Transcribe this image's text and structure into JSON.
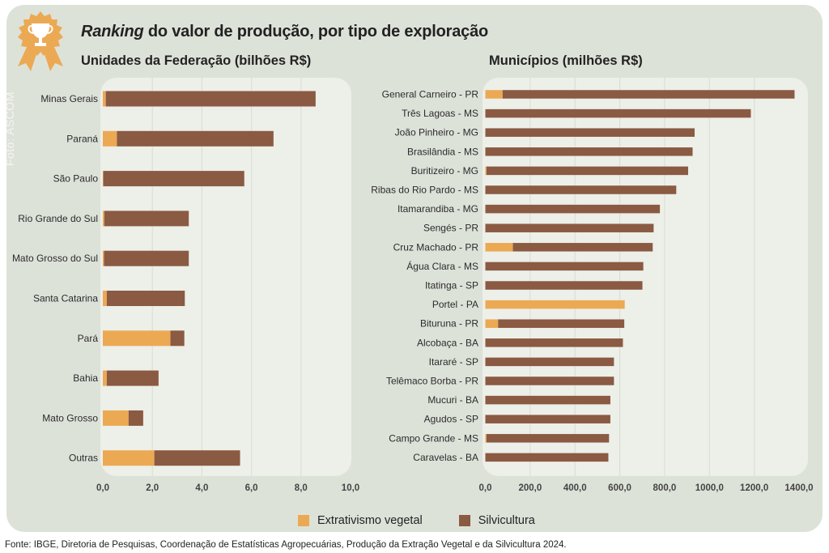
{
  "header": {
    "title_italic": "Ranking",
    "title_rest": " do valor de produção, por tipo de exploração",
    "photo_credit": "Foto: ASCOM",
    "icon": "trophy-medal-icon"
  },
  "colors": {
    "extrativismo": "#eca953",
    "silvicultura": "#8a5a42",
    "panel": "#edefe9",
    "frame": "#dde2d9",
    "grid": "#dcdfd8"
  },
  "legend": {
    "items": [
      {
        "label": "Extrativismo vegetal",
        "color": "#eca953"
      },
      {
        "label": "Silvicultura",
        "color": "#8a5a42"
      }
    ]
  },
  "footer": {
    "source": "Fonte: IBGE, Diretoria de Pesquisas, Coordenação de Estatísticas Agropecuárias, Produção da Extração Vegetal e da Silvicultura 2024."
  },
  "chart_data": [
    {
      "type": "bar",
      "orientation": "horizontal",
      "stacked": true,
      "title": "Unidades da Federação (bilhões R$)",
      "xlabel": "",
      "ylabel": "",
      "xlim": [
        0,
        10
      ],
      "xticks": [
        "0,0",
        "2,0",
        "4,0",
        "6,0",
        "8,0",
        "10,0"
      ],
      "xtick_values": [
        0,
        2,
        4,
        6,
        8,
        10
      ],
      "grid": true,
      "categories": [
        "Minas Gerais",
        "Paraná",
        "São Paulo",
        "Rio Grande do Sul",
        "Mato Grosso do Sul",
        "Santa Catarina",
        "Pará",
        "Bahia",
        "Mato Grosso",
        "Outras"
      ],
      "series": [
        {
          "name": "Extrativismo vegetal",
          "values": [
            0.12,
            0.57,
            0.02,
            0.06,
            0.05,
            0.16,
            2.73,
            0.16,
            1.04,
            2.08
          ]
        },
        {
          "name": "Silvicultura",
          "values": [
            8.47,
            6.32,
            5.69,
            3.41,
            3.42,
            3.15,
            0.56,
            2.09,
            0.59,
            3.46
          ]
        }
      ],
      "legend": "bottom"
    },
    {
      "type": "bar",
      "orientation": "horizontal",
      "stacked": true,
      "title": "Municípios (milhões R$)",
      "xlabel": "",
      "ylabel": "",
      "xlim": [
        0,
        1400
      ],
      "xticks": [
        "0,0",
        "200,0",
        "400,0",
        "600,0",
        "800,0",
        "1000,0",
        "1200,0",
        "1400,0"
      ],
      "xtick_values": [
        0,
        200,
        400,
        600,
        800,
        1000,
        1200,
        1400
      ],
      "grid": true,
      "categories": [
        "General Carneiro - PR",
        "Três Lagoas - MS",
        "João Pinheiro - MG",
        "Brasilândia - MS",
        "Buritizeiro - MG",
        "Ribas do Rio Pardo - MS",
        "Itamarandiba - MG",
        "Sengés - PR",
        "Cruz Machado - PR",
        "Água Clara - MS",
        "Itatinga - SP",
        "Portel - PA",
        "Bituruna - PR",
        "Alcobaça - BA",
        "Itararé - SP",
        "Telêmaco Borba - PR",
        "Mucuri - BA",
        "Agudos - SP",
        "Campo Grande - MS",
        "Caravelas - BA"
      ],
      "series": [
        {
          "name": "Extrativismo vegetal",
          "values": [
            77,
            0,
            0,
            0,
            5,
            0,
            0,
            0,
            123,
            0,
            0,
            622,
            57,
            0,
            0,
            0,
            0,
            0,
            5,
            0
          ]
        },
        {
          "name": "Silvicultura",
          "values": [
            1303,
            1185,
            934,
            925,
            900,
            852,
            779,
            751,
            624,
            705,
            701,
            0,
            563,
            614,
            574,
            574,
            558,
            558,
            547,
            549
          ]
        }
      ],
      "legend": "bottom"
    }
  ]
}
